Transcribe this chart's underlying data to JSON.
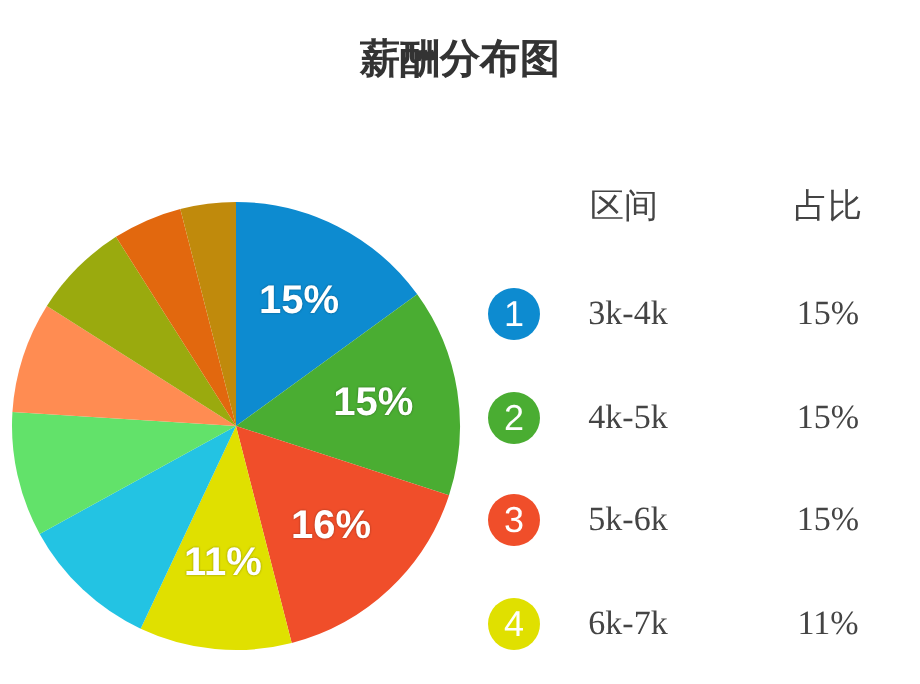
{
  "chart_data": {
    "type": "pie",
    "title": "薪酬分布图",
    "categories": [
      "3k-4k",
      "4k-5k",
      "5k-6k",
      "6k-7k",
      null,
      null,
      null,
      null,
      null,
      null
    ],
    "values": [
      15,
      15,
      16,
      11,
      10,
      9,
      8,
      7,
      5,
      4
    ],
    "value_labels": [
      "15%",
      "15%",
      "16%",
      "11%",
      null,
      null,
      null,
      null,
      null,
      null
    ],
    "colors": [
      "#0d8bd0",
      "#4aad32",
      "#f04e2a",
      "#e0e000",
      "#23c3e3",
      "#62e26a",
      "#ff8c52",
      "#9aaa0e",
      "#e2680e",
      "#c08a0c"
    ],
    "legend": "right",
    "annotations": [
      "区间",
      "占比",
      "1",
      "2",
      "3",
      "4",
      "15%",
      "15%",
      "15%",
      "11%"
    ]
  }
}
